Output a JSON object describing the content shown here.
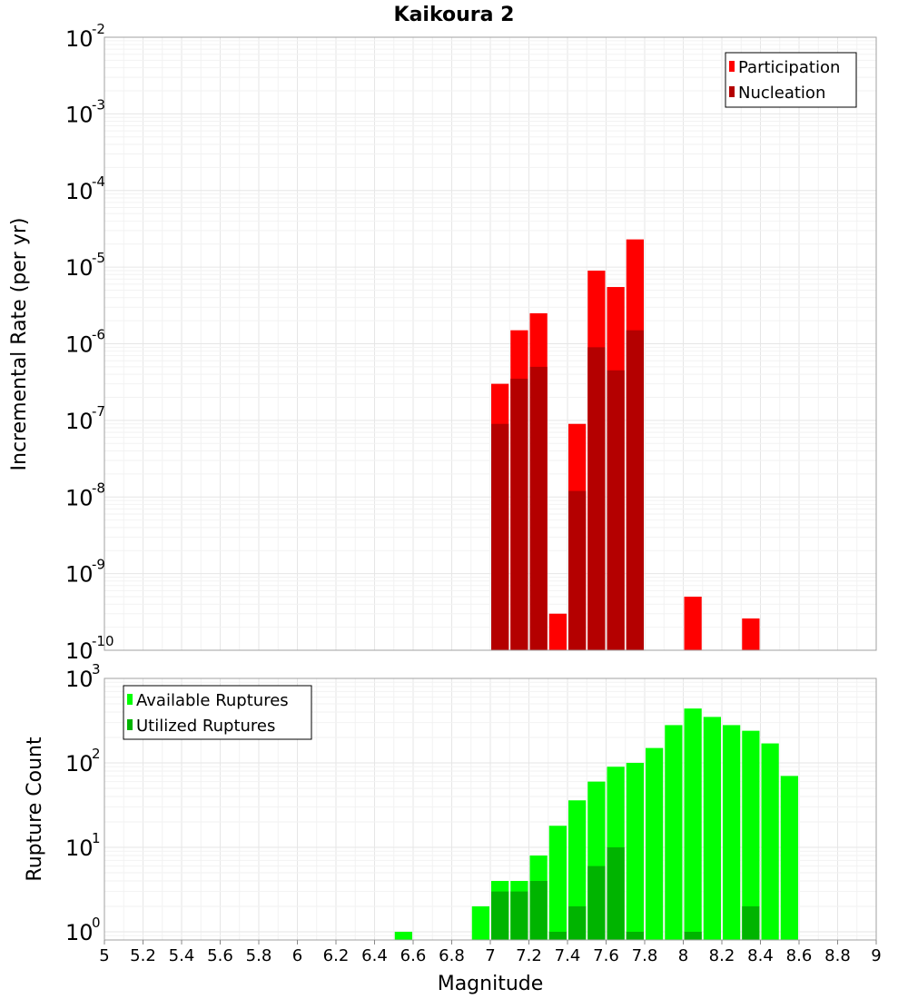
{
  "chart_data": [
    {
      "type": "bar",
      "title": "Kaikoura 2",
      "xlabel": "Magnitude",
      "ylabel": "Incremental Rate (per yr)",
      "yscale": "log",
      "ylim": [
        1e-10,
        0.01
      ],
      "xlim": [
        5,
        9
      ],
      "bin_width": 0.1,
      "legend_position": "top-right",
      "grid": true,
      "series": [
        {
          "name": "Participation",
          "color": "#ff0000",
          "x": [
            7.05,
            7.15,
            7.25,
            7.35,
            7.45,
            7.55,
            7.65,
            7.75,
            8.05,
            8.35
          ],
          "values": [
            3e-07,
            1.5e-06,
            2.5e-06,
            3e-10,
            9e-08,
            9e-06,
            5.5e-06,
            2.3e-05,
            5e-10,
            2.6e-10
          ]
        },
        {
          "name": "Nucleation",
          "color": "#b40000",
          "x": [
            7.05,
            7.15,
            7.25,
            7.45,
            7.55,
            7.65,
            7.75
          ],
          "values": [
            9e-08,
            3.5e-07,
            5e-07,
            1.2e-08,
            9e-07,
            4.5e-07,
            1.5e-06
          ]
        }
      ]
    },
    {
      "type": "bar",
      "xlabel": "Magnitude",
      "ylabel": "Rupture Count",
      "yscale": "log",
      "ylim": [
        0.8,
        1000
      ],
      "xlim": [
        5,
        9
      ],
      "bin_width": 0.1,
      "legend_position": "top-left",
      "grid": true,
      "series": [
        {
          "name": "Available Ruptures",
          "color": "#00ff00",
          "x": [
            6.55,
            6.95,
            7.05,
            7.15,
            7.25,
            7.35,
            7.45,
            7.55,
            7.65,
            7.75,
            7.85,
            7.95,
            8.05,
            8.15,
            8.25,
            8.35,
            8.45,
            8.55
          ],
          "values": [
            1,
            2,
            4,
            4,
            8,
            18,
            36,
            60,
            90,
            100,
            150,
            280,
            440,
            350,
            280,
            240,
            170,
            70
          ]
        },
        {
          "name": "Utilized Ruptures",
          "color": "#00b400",
          "x": [
            7.05,
            7.15,
            7.25,
            7.35,
            7.45,
            7.55,
            7.65,
            7.75,
            8.05,
            8.35
          ],
          "values": [
            3,
            3,
            4,
            1,
            2,
            6,
            10,
            1,
            1,
            2
          ]
        }
      ]
    }
  ],
  "x_ticks": [
    "5",
    "5.2",
    "5.4",
    "5.6",
    "5.8",
    "6",
    "6.2",
    "6.4",
    "6.6",
    "6.8",
    "7",
    "7.2",
    "7.4",
    "7.6",
    "7.8",
    "8",
    "8.2",
    "8.4",
    "8.6",
    "8.8",
    "9"
  ],
  "top_y_ticks": [
    {
      "base": "10",
      "exp": "-2"
    },
    {
      "base": "10",
      "exp": "-3"
    },
    {
      "base": "10",
      "exp": "-4"
    },
    {
      "base": "10",
      "exp": "-5"
    },
    {
      "base": "10",
      "exp": "-6"
    },
    {
      "base": "10",
      "exp": "-7"
    },
    {
      "base": "10",
      "exp": "-8"
    },
    {
      "base": "10",
      "exp": "-9"
    },
    {
      "base": "10",
      "exp": "-10"
    }
  ],
  "bottom_y_ticks": [
    {
      "base": "10",
      "exp": "3"
    },
    {
      "base": "10",
      "exp": "2"
    },
    {
      "base": "10",
      "exp": "1"
    },
    {
      "base": "10",
      "exp": "0"
    }
  ]
}
